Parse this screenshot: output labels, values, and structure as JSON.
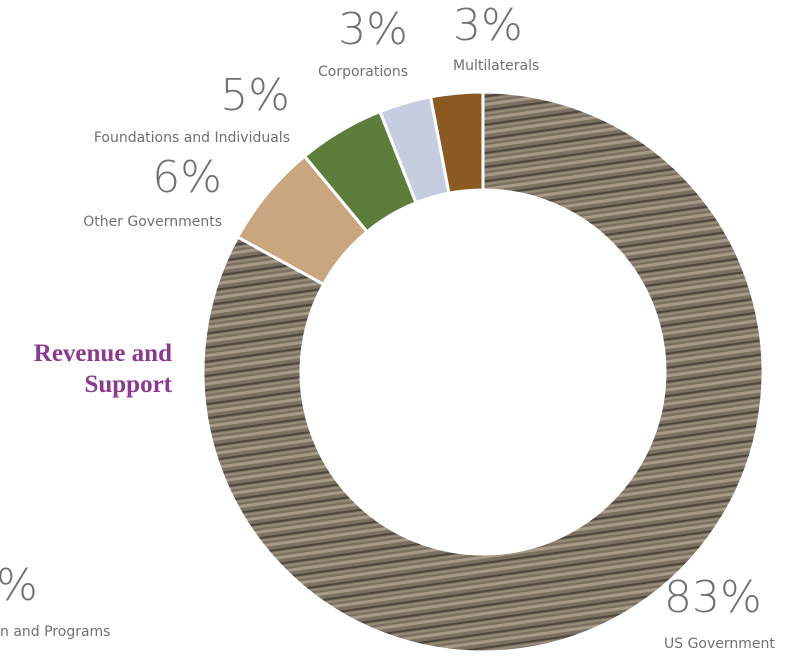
{
  "chart_data": {
    "type": "donut",
    "title": "Revenue and Support",
    "categories": [
      "Multilaterals",
      "Corporations",
      "Foundations and Individuals",
      "Other Governments",
      "US Government"
    ],
    "values": [
      3,
      3,
      5,
      6,
      83
    ],
    "value_labels": [
      "3%",
      "3%",
      "5%",
      "6%",
      "83%"
    ],
    "colors": [
      "#8a5a22",
      "#c6cde0",
      "#5d7d3c",
      "#c9a67f",
      "#7b7062"
    ],
    "direction": "counterclockwise",
    "annotations": [
      "%",
      "n and Programs"
    ]
  }
}
